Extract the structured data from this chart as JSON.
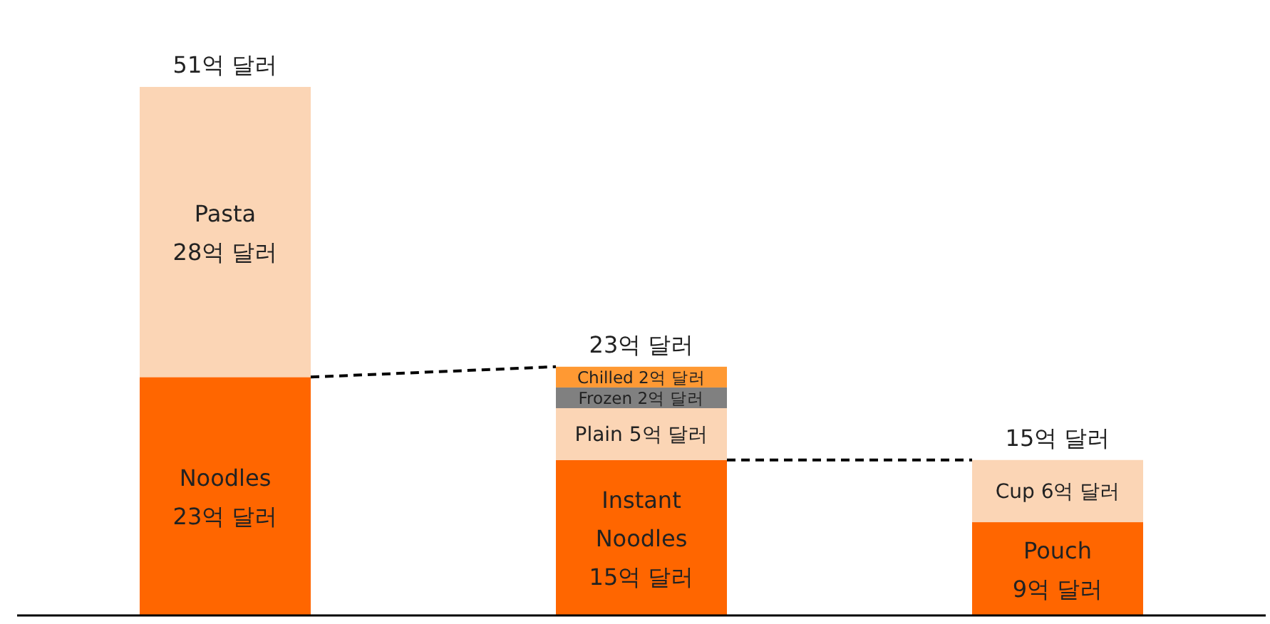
{
  "chart_data": {
    "type": "bar",
    "stacked": true,
    "categories": [
      null,
      null,
      null
    ],
    "series": [
      {
        "color": "#ff6600",
        "values": [
          23,
          15,
          9
        ],
        "value_labels": [
          "Noodles 23억 달러",
          "Instant Noodles 15억 달러",
          "Pouch 9억 달러"
        ]
      },
      {
        "color": "#fbd5b5",
        "values": [
          28,
          5,
          6
        ],
        "value_labels": [
          "Pasta 28억 달러",
          "Plain 5억 달러",
          "Cup 6억 달러"
        ]
      },
      {
        "color": "#808080",
        "values": [
          null,
          2,
          null
        ],
        "value_labels": [
          null,
          "Frozen 2억 달러",
          null
        ]
      },
      {
        "color": "#ff9933",
        "values": [
          null,
          2,
          null
        ],
        "value_labels": [
          null,
          "Chilled 2억 달러",
          null
        ]
      }
    ],
    "totals": [
      "51억 달러",
      "23억 달러",
      "15억 달러"
    ]
  }
}
